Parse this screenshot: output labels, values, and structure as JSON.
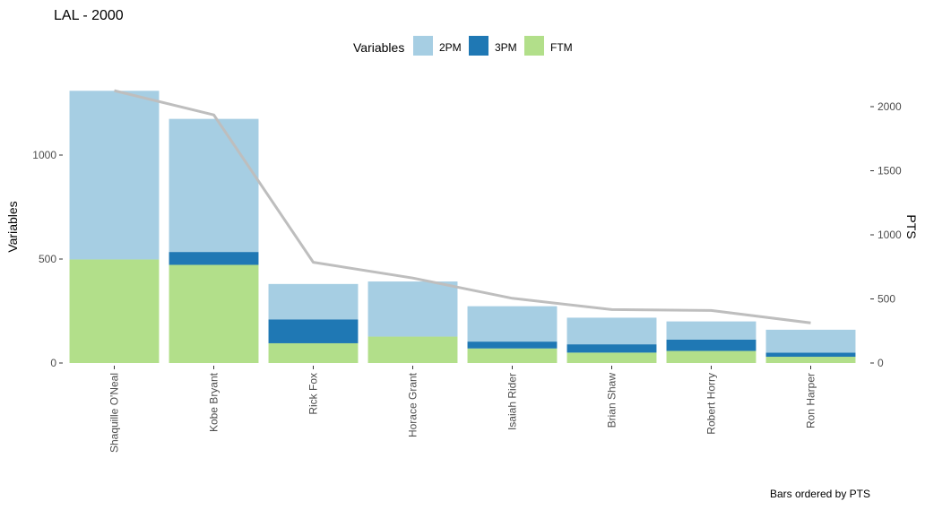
{
  "chart_data": {
    "type": "bar",
    "stacked": true,
    "title": "LAL - 2000",
    "caption": "Bars ordered by PTS",
    "ylabel_left": "Variables",
    "ylabel_right": "PTS",
    "legend": {
      "title": "Variables",
      "position": "top",
      "items": [
        {
          "name": "2PM",
          "color": "#a6cee3"
        },
        {
          "name": "3PM",
          "color": "#1f78b4"
        },
        {
          "name": "FTM",
          "color": "#b2df8a"
        }
      ]
    },
    "categories": [
      "Shaquille O'Neal",
      "Kobe Bryant",
      "Rick Fox",
      "Horace Grant",
      "Isaiah Rider",
      "Brian Shaw",
      "Robert Horry",
      "Ron Harper"
    ],
    "series": [
      {
        "name": "FTM",
        "color": "#b2df8a",
        "values": [
          498,
          472,
          95,
          127,
          70,
          50,
          58,
          30
        ]
      },
      {
        "name": "3PM",
        "color": "#1f78b4",
        "values": [
          0,
          62,
          115,
          0,
          33,
          40,
          55,
          20
        ]
      },
      {
        "name": "2PM",
        "color": "#a6cee3",
        "values": [
          811,
          640,
          170,
          265,
          170,
          128,
          87,
          110
        ]
      }
    ],
    "line_series": {
      "name": "PTS",
      "color": "#bebebe",
      "values": [
        2125,
        1936,
        786,
        663,
        505,
        417,
        410,
        313
      ]
    },
    "ylim_left": [
      0,
      1309
    ],
    "yticks_left": [
      0,
      500,
      1000
    ],
    "ylim_right": [
      0,
      2200
    ],
    "yticks_right": [
      0,
      500,
      1000,
      1500,
      2000
    ],
    "grid": false
  }
}
